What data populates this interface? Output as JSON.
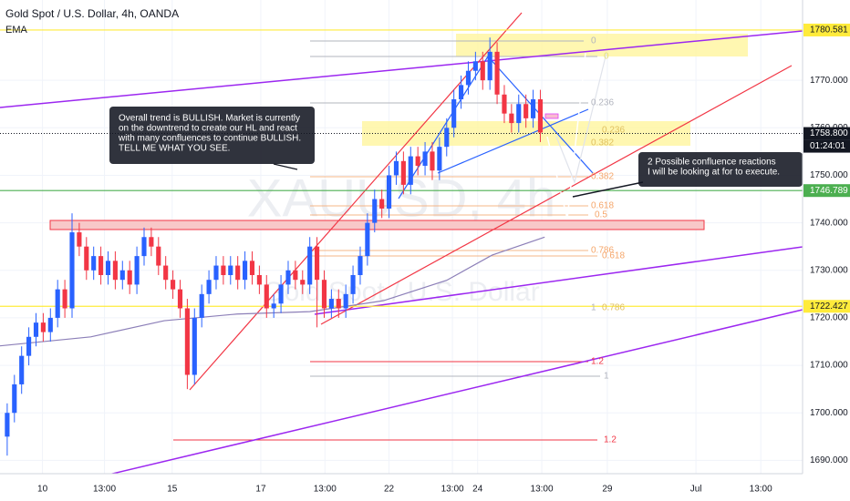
{
  "chart_data": {
    "type": "candlestick",
    "title": "Gold Spot / U.S. Dollar, 4h, OANDA",
    "watermark": [
      "XAUUSD, 4h",
      "Gold Spot / U.S. Dollar"
    ],
    "up_color": "#2962ff",
    "down_color": "#f23645",
    "open": [
      1695,
      1700,
      1706,
      1712,
      1716,
      1719,
      1717,
      1720,
      1726,
      1722,
      1738,
      1735,
      1730,
      1733,
      1729,
      1732,
      1728,
      1730,
      1727,
      1733,
      1737,
      1735,
      1731,
      1728,
      1726,
      1722,
      1708,
      1720,
      1725,
      1728,
      1731,
      1729,
      1731,
      1728,
      1732,
      1729,
      1727,
      1722,
      1723,
      1727,
      1730,
      1728,
      1727,
      1735,
      1728,
      1722,
      1724,
      1722,
      1725,
      1729,
      1733,
      1740,
      1745,
      1743,
      1750,
      1753,
      1748,
      1754,
      1752,
      1755,
      1751,
      1756,
      1760,
      1766,
      1769,
      1772,
      1774,
      1770,
      1776,
      1767,
      1763,
      1761,
      1765,
      1762,
      1766
    ],
    "high": [
      1702,
      1708,
      1714,
      1718,
      1721,
      1721,
      1722,
      1728,
      1728,
      1742,
      1740,
      1737,
      1735,
      1735,
      1734,
      1734,
      1732,
      1732,
      1735,
      1739,
      1739,
      1737,
      1733,
      1730,
      1728,
      1724,
      1722,
      1727,
      1730,
      1733,
      1733,
      1733,
      1733,
      1734,
      1734,
      1731,
      1729,
      1725,
      1729,
      1732,
      1732,
      1730,
      1737,
      1737,
      1730,
      1726,
      1726,
      1727,
      1731,
      1735,
      1742,
      1747,
      1747,
      1752,
      1755,
      1755,
      1756,
      1756,
      1757,
      1757,
      1758,
      1762,
      1768,
      1771,
      1774,
      1776,
      1776,
      1779,
      1778,
      1769,
      1765,
      1767,
      1767,
      1768,
      1768
    ],
    "low": [
      1691,
      1698,
      1704,
      1710,
      1714,
      1715,
      1715,
      1718,
      1720,
      1720,
      1733,
      1728,
      1728,
      1727,
      1727,
      1726,
      1726,
      1725,
      1725,
      1731,
      1733,
      1729,
      1726,
      1724,
      1720,
      1705,
      1706,
      1718,
      1723,
      1726,
      1727,
      1727,
      1726,
      1726,
      1727,
      1725,
      1720,
      1720,
      1721,
      1725,
      1726,
      1725,
      1725,
      1718,
      1720,
      1720,
      1720,
      1720,
      1723,
      1727,
      1731,
      1738,
      1741,
      1741,
      1748,
      1746,
      1746,
      1750,
      1750,
      1749,
      1749,
      1754,
      1758,
      1764,
      1767,
      1770,
      1768,
      1768,
      1765,
      1761,
      1759,
      1759,
      1760,
      1760,
      1757
    ],
    "close": [
      1700,
      1706,
      1712,
      1716,
      1719,
      1717,
      1720,
      1726,
      1722,
      1738,
      1735,
      1730,
      1733,
      1729,
      1732,
      1728,
      1730,
      1727,
      1733,
      1737,
      1735,
      1731,
      1728,
      1726,
      1722,
      1708,
      1720,
      1725,
      1728,
      1731,
      1729,
      1731,
      1728,
      1732,
      1729,
      1727,
      1722,
      1723,
      1727,
      1730,
      1728,
      1727,
      1735,
      1728,
      1722,
      1724,
      1722,
      1725,
      1729,
      1733,
      1740,
      1745,
      1743,
      1750,
      1753,
      1748,
      1754,
      1752,
      1755,
      1751,
      1756,
      1760,
      1766,
      1769,
      1772,
      1774,
      1770,
      1776,
      1767,
      1763,
      1761,
      1765,
      1762,
      1766,
      1759
    ],
    "ema": {
      "name": "EMA",
      "color": "#8c7fb8",
      "x": [
        -1,
        11.6,
        21.8,
        31.9,
        42,
        52.2,
        61,
        67.3,
        74.6
      ],
      "values": [
        1714.1,
        1716,
        1719.4,
        1720.8,
        1721.3,
        1723.6,
        1727.9,
        1733.2,
        1737
      ]
    },
    "xlim": [
      -1,
      110.4
    ],
    "ylim": [
      1687.2,
      1786.9
    ],
    "xticks": [
      {
        "value": 4.9,
        "label": "10"
      },
      {
        "value": 13.5,
        "label": "13:00"
      },
      {
        "value": 22.9,
        "label": "15"
      },
      {
        "value": 35.2,
        "label": "17"
      },
      {
        "value": 44.1,
        "label": "13:00"
      },
      {
        "value": 53,
        "label": "22"
      },
      {
        "value": 61.8,
        "label": "13:00"
      },
      {
        "value": 65.3,
        "label": "24"
      },
      {
        "value": 74.2,
        "label": "13:00"
      },
      {
        "value": 83.3,
        "label": "29"
      },
      {
        "value": 95.6,
        "label": "Jul"
      },
      {
        "value": 104.6,
        "label": "13:00"
      }
    ],
    "yticks": [
      {
        "value": 1690,
        "label": "1690.000"
      },
      {
        "value": 1700,
        "label": "1700.000"
      },
      {
        "value": 1710,
        "label": "1710.000"
      },
      {
        "value": 1720,
        "label": "1720.000"
      },
      {
        "value": 1730,
        "label": "1730.000"
      },
      {
        "value": 1740,
        "label": "1740.000"
      },
      {
        "value": 1750,
        "label": "1750.000"
      },
      {
        "value": 1760,
        "label": "1760.000"
      },
      {
        "value": 1770,
        "label": "1770.000"
      }
    ],
    "grid": true,
    "price_markers": [
      {
        "value": 1780.581,
        "color": "#ffeb3b"
      },
      {
        "value": 1758.8,
        "label": "1758.800",
        "color": "#131722",
        "countdown": "01:24:01"
      },
      {
        "value": 1746.789,
        "color": "#4caf50"
      },
      {
        "value": 1722.427,
        "color": "#ffeb3b"
      }
    ],
    "fib_labels": [
      {
        "text": "0",
        "color": "#b2b5be"
      },
      {
        "text": "0",
        "color": "#e8e27a"
      },
      {
        "text": "0.236",
        "color": "#b2b5be"
      },
      {
        "text": "0.236",
        "color": "#e0c060"
      },
      {
        "text": "0.382",
        "color": "#e0c060"
      },
      {
        "text": "0.382",
        "color": "#f5a66a"
      },
      {
        "text": "0.618",
        "color": "#f5a66a"
      },
      {
        "text": "0.5",
        "color": "#f5a66a"
      },
      {
        "text": "0.786",
        "color": "#f5a66a"
      },
      {
        "text": "0.618",
        "color": "#f5a66a"
      },
      {
        "text": "1",
        "color": "#b2b5be"
      },
      {
        "text": "0.786",
        "color": "#e0c060"
      },
      {
        "text": "1.2",
        "color": "#f23645"
      },
      {
        "text": "1",
        "color": "#b2b5be"
      },
      {
        "text": "1.2",
        "color": "#f23645"
      }
    ],
    "notes": [
      [
        "Overall trend is BULLISH. Market is currently",
        "on the downtrend to create our HL and react",
        "with many confluences to continue BULLISH.",
        "TELL ME WHAT YOU SEE."
      ],
      [
        "2 Possible confluence reactions",
        "I will be looking at for to execute."
      ]
    ]
  }
}
